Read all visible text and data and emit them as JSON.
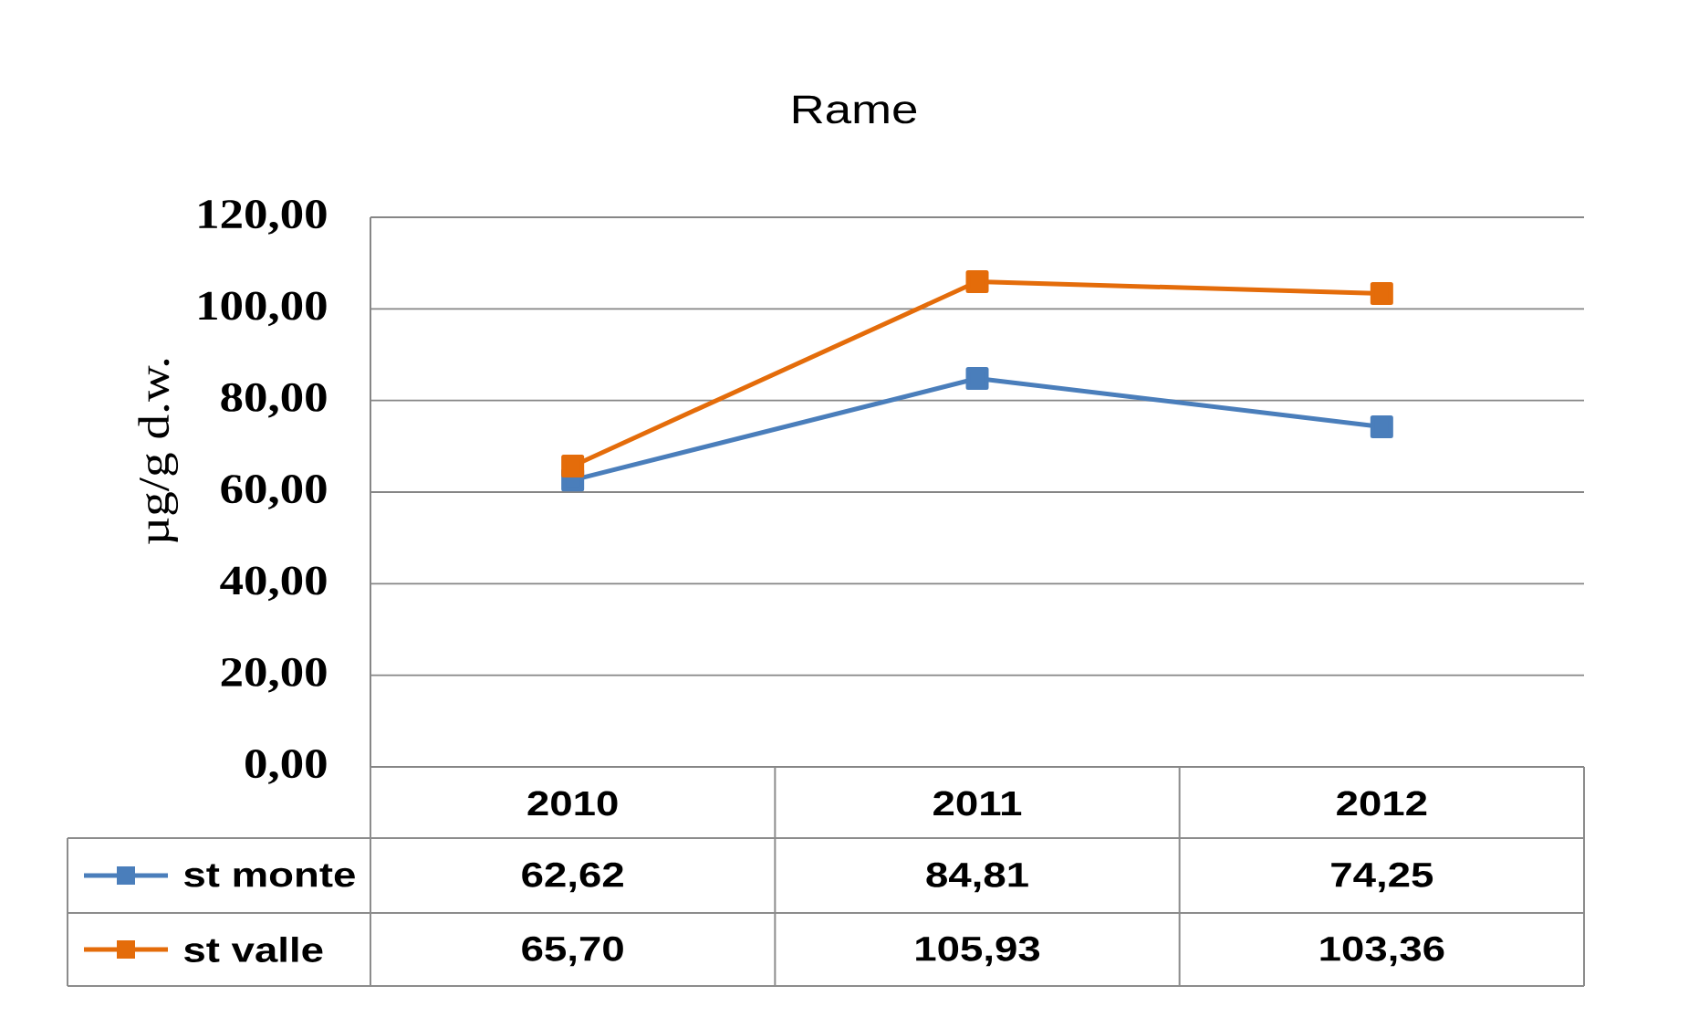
{
  "chart_data": {
    "type": "line",
    "title": "Rame",
    "ylabel": "µg/g d.w.",
    "categories": [
      "2010",
      "2011",
      "2012"
    ],
    "series": [
      {
        "name": "st monte",
        "color": "#4a7ebb",
        "values": [
          62.62,
          84.81,
          74.25
        ],
        "value_labels": [
          "62,62",
          "84,81",
          "74,25"
        ]
      },
      {
        "name": "st valle",
        "color": "#e46c0a",
        "values": [
          65.7,
          105.93,
          103.36
        ],
        "value_labels": [
          "65,70",
          "105,93",
          "103,36"
        ]
      }
    ],
    "ylim": [
      0,
      120
    ],
    "yticks": [
      {
        "value": 0,
        "label": "0,00"
      },
      {
        "value": 20,
        "label": "20,00"
      },
      {
        "value": 40,
        "label": "40,00"
      },
      {
        "value": 60,
        "label": "60,00"
      },
      {
        "value": 80,
        "label": "80,00"
      },
      {
        "value": 100,
        "label": "100,00"
      },
      {
        "value": 120,
        "label": "120,00"
      }
    ],
    "grid": "y",
    "legend": "bottom left",
    "marker": "square",
    "line_style": "solid"
  }
}
